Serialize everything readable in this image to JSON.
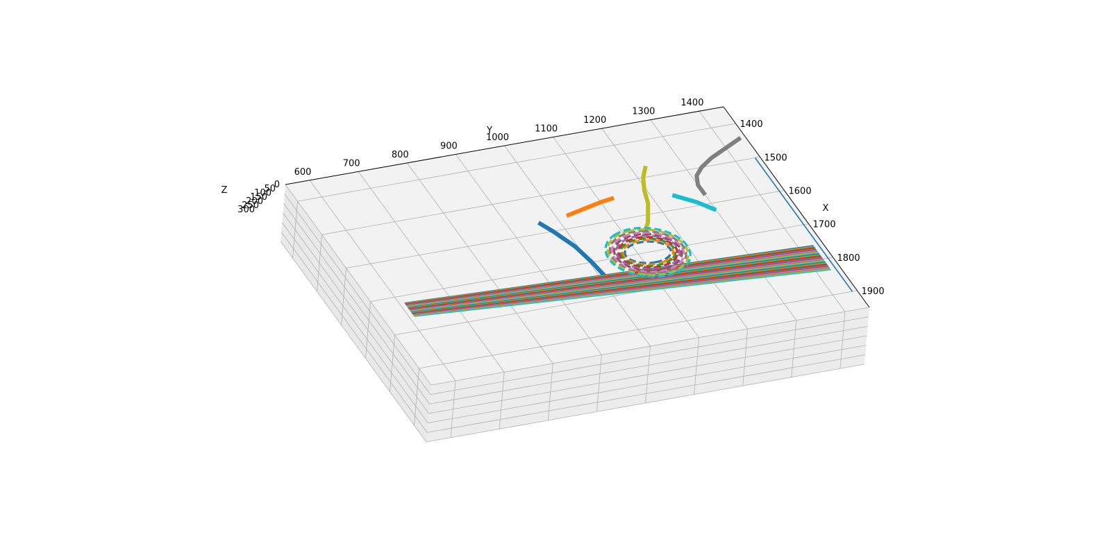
{
  "chart_data": {
    "type": "line",
    "projection": "3d",
    "title": "",
    "xlabel": "X",
    "ylabel": "Y",
    "zlabel": "Z",
    "xlim": [
      1350,
      1950
    ],
    "ylim": [
      550,
      1450
    ],
    "zlim": [
      0,
      300
    ],
    "grid": true,
    "x_ticks": [
      "1400",
      "1500",
      "1600",
      "1700",
      "1800",
      "1900"
    ],
    "y_ticks": [
      "600",
      "700",
      "800",
      "900",
      "1000",
      "1100",
      "1200",
      "1300",
      "1400"
    ],
    "z_ticks": [
      "0",
      "50",
      "100",
      "150",
      "200",
      "250",
      "300"
    ],
    "colors": [
      "#1f77b4",
      "#ff7f0e",
      "#2ca02c",
      "#d62728",
      "#9467bd",
      "#8c564b",
      "#e377c2",
      "#7f7f7f",
      "#bcbd22",
      "#17becf"
    ],
    "solid_paths": [
      {
        "color": "#1f77b4",
        "x": [
          1570,
          1600,
          1650,
          1700,
          1780
        ],
        "y": [
          960,
          975,
          995,
          1005,
          1015
        ],
        "z": [
          0,
          0,
          0,
          0,
          0
        ]
      },
      {
        "color": "#ff7f0e",
        "x": [
          1565,
          1555,
          1545,
          1540
        ],
        "y": [
          1020,
          1060,
          1100,
          1130
        ],
        "z": [
          0,
          0,
          0,
          0
        ]
      },
      {
        "color": "#bcbd22",
        "x": [
          1660,
          1620,
          1570,
          1535,
          1500,
          1470
        ],
        "y": [
          1130,
          1160,
          1185,
          1195,
          1210,
          1230
        ],
        "z": [
          0,
          0,
          0,
          0,
          0,
          0
        ]
      },
      {
        "color": "#17becf",
        "x": [
          1560,
          1590,
          1620
        ],
        "y": [
          1240,
          1275,
          1300
        ],
        "z": [
          0,
          0,
          0
        ]
      },
      {
        "color": "#7f7f7f",
        "x": [
          1575,
          1545,
          1520,
          1500,
          1480,
          1465,
          1440
        ],
        "y": [
          1300,
          1300,
          1310,
          1330,
          1360,
          1390,
          1440
        ],
        "z": [
          0,
          0,
          0,
          0,
          0,
          0,
          0
        ]
      }
    ],
    "ring_paths": {
      "center": [
        1700,
        1120
      ],
      "count": 10,
      "rx_range": [
        30,
        70
      ],
      "ry_range": [
        45,
        80
      ]
    },
    "sheet_paths": {
      "count": 30,
      "x_start": 1720,
      "x_end": 1800,
      "y_start": 610,
      "y_end": 1430,
      "z": 0
    },
    "vertical_lines": [
      {
        "color": "#1f77b4",
        "x": [
          1500,
          1900
        ],
        "y": [
          1440,
          1440
        ],
        "z": [
          0,
          0
        ]
      }
    ]
  }
}
